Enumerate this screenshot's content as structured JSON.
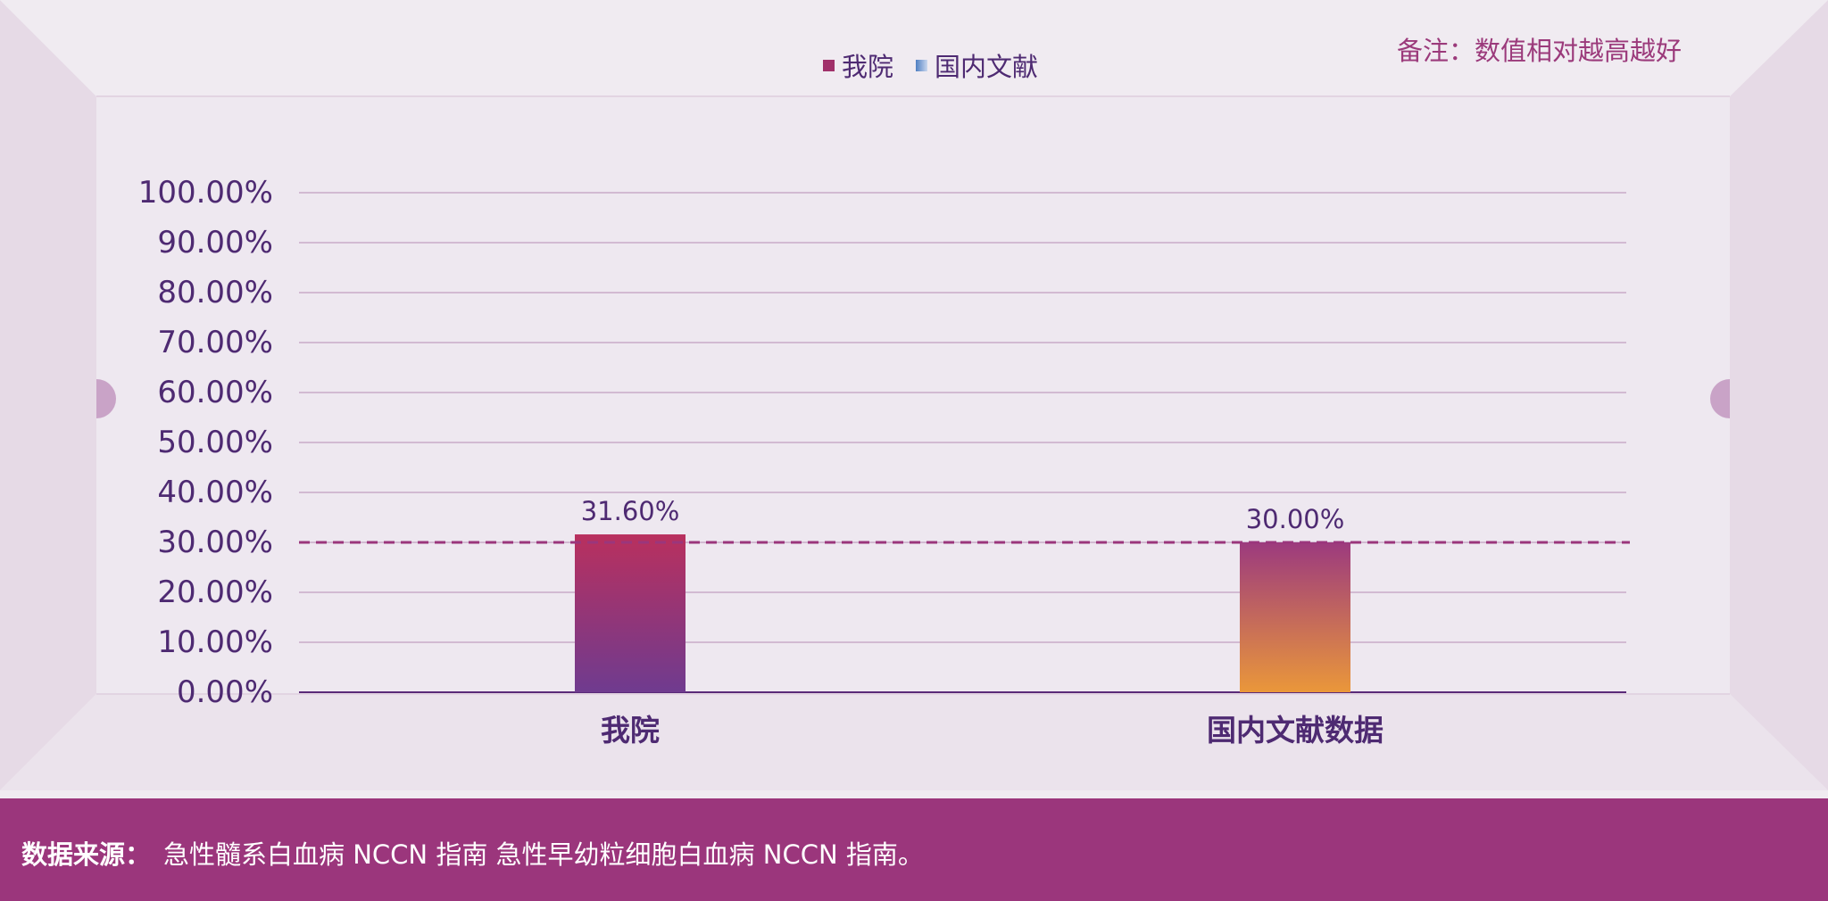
{
  "legend": [
    {
      "label": "我院",
      "color": "#a0306a",
      "gradient": false
    },
    {
      "label": "国内文献",
      "color": "#4f7fc2",
      "gradient": true
    }
  ],
  "note": "备注：数值相对越高越好",
  "footer": {
    "label": "数据来源：",
    "text": "急性髓系白血病 NCCN 指南 急性早幼粒细胞白血病 NCCN 指南。"
  },
  "colors": {
    "axis_text": "#4e2a72",
    "bar1_top": "#b9305e",
    "bar1_bottom": "#6f3b8f",
    "bar2_top": "#9c3a7e",
    "bar2_bottom": "#ea973a",
    "reference_line": "#9b367c",
    "footer_bg": "#9b367c"
  },
  "chart_data": {
    "type": "bar",
    "categories": [
      "我院",
      "国内文献数据"
    ],
    "values": [
      31.6,
      30.0
    ],
    "value_labels": [
      "31.60%",
      "30.00%"
    ],
    "ylim": [
      0,
      100
    ],
    "yticks": [
      "0.00%",
      "10.00%",
      "20.00%",
      "30.00%",
      "40.00%",
      "50.00%",
      "60.00%",
      "70.00%",
      "80.00%",
      "90.00%",
      "100.00%"
    ],
    "reference_line": 30,
    "grid": true,
    "xlabel": "",
    "ylabel": ""
  }
}
